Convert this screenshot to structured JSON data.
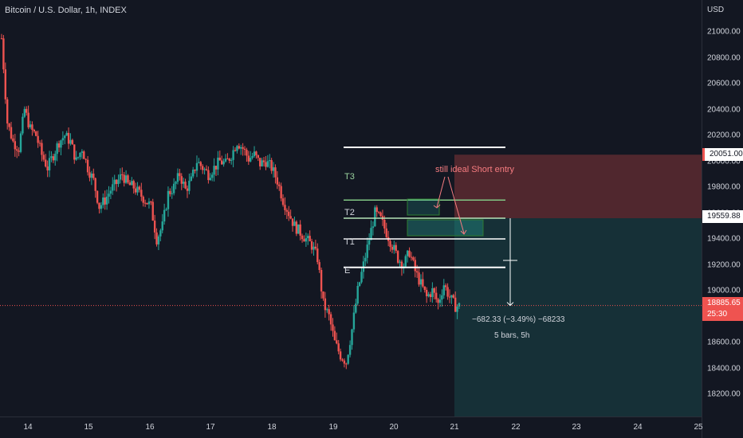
{
  "symbol_title": "Bitcoin / U.S. Dollar, 1h, INDEX",
  "currency": "USD",
  "colors": {
    "background": "#131722",
    "up": "#26a69a",
    "down": "#ef5350",
    "white": "#ffffff"
  },
  "y_ticks": [
    "21000.00",
    "20800.00",
    "20600.00",
    "20400.00",
    "20200.00",
    "20000.00",
    "19800.00",
    "19600.00",
    "19400.00",
    "19200.00",
    "19000.00",
    "18800.00",
    "18600.00",
    "18400.00",
    "18200.00"
  ],
  "x_ticks": [
    "14",
    "15",
    "16",
    "17",
    "18",
    "19",
    "20",
    "21",
    "22",
    "23",
    "24",
    "25"
  ],
  "badges": {
    "stop_price": "20051.00",
    "entry_price": "19559.88",
    "last_price": "18885.65",
    "countdown": "25:30"
  },
  "annotations": {
    "t3": "T3",
    "t2": "T2",
    "t1": "T1",
    "e": "E",
    "note": "still ideal Short entry",
    "measure_line1": "−682.33 (−3.49%) −68233",
    "measure_line2": "5 bars, 5h"
  },
  "chart_data": {
    "type": "candlestick",
    "title": "Bitcoin / U.S. Dollar, 1h, INDEX",
    "x_dates": [
      "14",
      "15",
      "16",
      "17",
      "18",
      "19",
      "20",
      "21",
      "22",
      "23",
      "24",
      "25"
    ],
    "ylim": [
      18050,
      21150
    ],
    "levels": {
      "T3": 19700,
      "T2": 19560,
      "T1": 19400,
      "E": 19180,
      "top_line": 20100,
      "stop": 20051.0,
      "entry": 19559.88,
      "last": 18885.65
    },
    "close_path": [
      20950,
      20300,
      20150,
      20100,
      20400,
      20250,
      20200,
      20050,
      19950,
      20050,
      20150,
      20200,
      20150,
      20000,
      20100,
      19950,
      19850,
      19650,
      19700,
      19780,
      19830,
      19900,
      19820,
      19800,
      19750,
      19700,
      19650,
      19400,
      19500,
      19750,
      19800,
      19900,
      19780,
      19850,
      20000,
      19950,
      19900,
      19950,
      20000,
      19980,
      20050,
      20150,
      20100,
      20020,
      20050,
      19980,
      20000,
      19950,
      19850,
      19700,
      19600,
      19500,
      19450,
      19400,
      19350,
      19250,
      18900,
      18800,
      18600,
      18500,
      18450,
      18700,
      19000,
      19200,
      19400,
      19600,
      19550,
      19450,
      19350,
      19250,
      19200,
      19300,
      19150,
      19050,
      18950,
      19000,
      18900,
      19050,
      18950,
      18880
    ],
    "short_position": {
      "entry": 19559.88,
      "stop": 20051.0,
      "target_zone_bottom": 18050
    },
    "measure": {
      "change": -682.33,
      "percent": -3.49,
      "bars": 5,
      "hours": 5
    }
  }
}
